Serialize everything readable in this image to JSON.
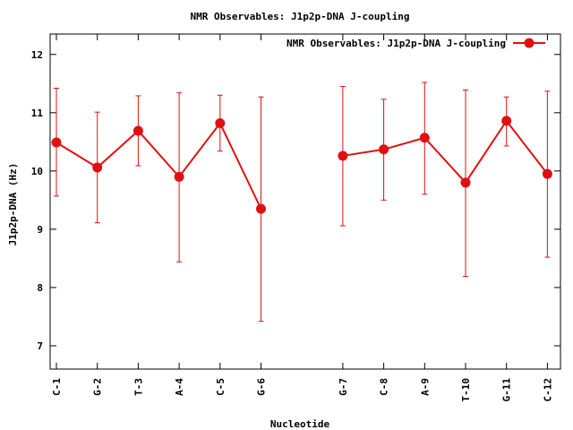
{
  "chart_data": {
    "type": "line",
    "title": "NMR Observables: J1p2p-DNA J-coupling",
    "xlabel": "Nucleotide",
    "ylabel": "J1p2p-DNA (Hz)",
    "ylim": [
      6.6,
      12.35
    ],
    "yticks": [
      7,
      8,
      9,
      10,
      11,
      12
    ],
    "categories": [
      "C-1",
      "G-2",
      "T-3",
      "A-4",
      "C-5",
      "G-6",
      "",
      "G-7",
      "C-8",
      "A-9",
      "T-10",
      "G-11",
      "C-12"
    ],
    "legend": {
      "position": "top-right",
      "label": "NMR Observables: J1p2p-DNA J-coupling"
    },
    "series": [
      {
        "name": "NMR Observables: J1p2p-DNA J-coupling",
        "color": "#e01010",
        "values": [
          10.49,
          10.06,
          10.69,
          9.9,
          10.82,
          9.35,
          null,
          10.26,
          10.37,
          10.57,
          9.8,
          10.86,
          9.95
        ],
        "err_low": [
          9.57,
          9.11,
          10.09,
          8.44,
          10.34,
          7.42,
          null,
          9.06,
          9.5,
          9.6,
          8.19,
          10.43,
          8.52
        ],
        "err_high": [
          11.42,
          11.01,
          11.29,
          11.34,
          11.3,
          11.27,
          null,
          11.45,
          11.23,
          11.52,
          11.39,
          11.27,
          11.37
        ]
      }
    ]
  }
}
